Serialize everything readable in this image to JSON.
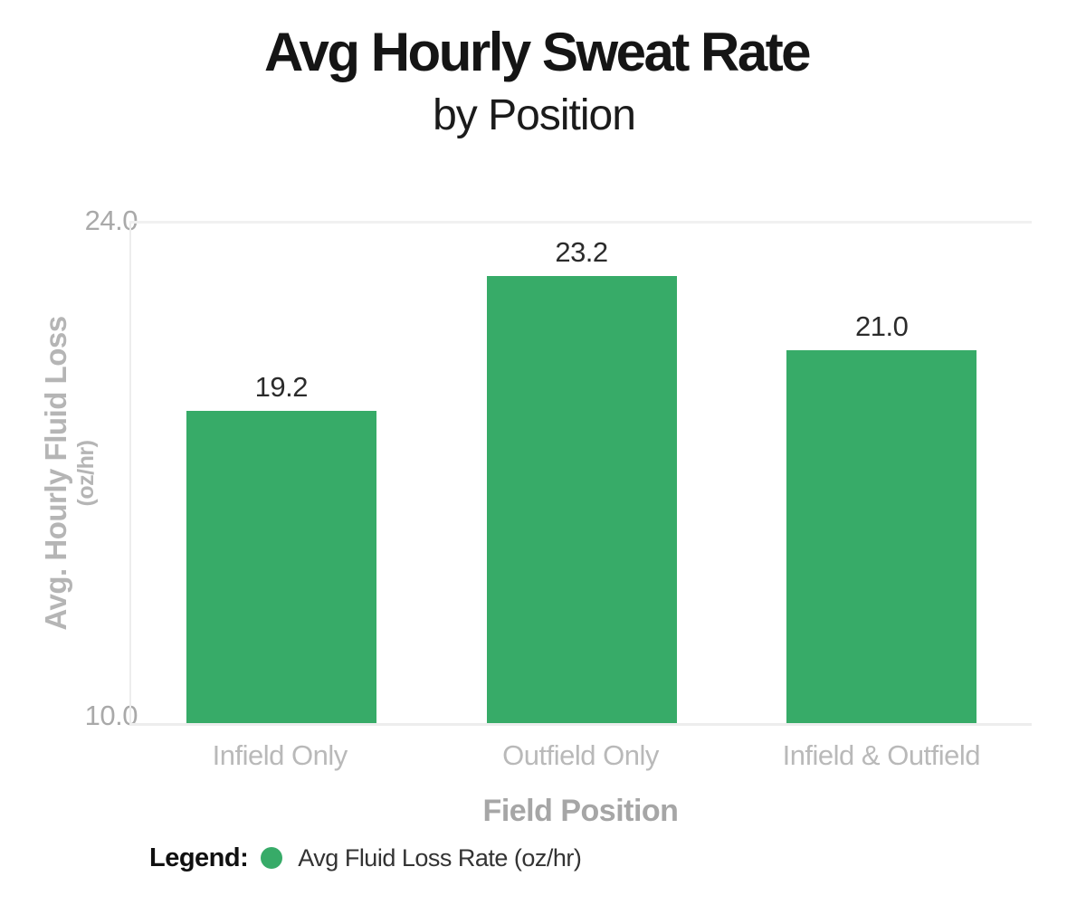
{
  "header": {
    "title": "Avg Hourly Sweat Rate",
    "subtitle": "by Position"
  },
  "chart_data": {
    "type": "bar",
    "title": "Avg Hourly Sweat Rate",
    "subtitle": "by Position",
    "categories": [
      "Infield Only",
      "Outfield Only",
      "Infield & Outfield"
    ],
    "series": [
      {
        "name": "Avg Fluid Loss Rate (oz/hr)",
        "values": [
          19.2,
          23.2,
          21.0
        ]
      }
    ],
    "value_labels": [
      "19.2",
      "23.2",
      "21.0"
    ],
    "xlabel": "Field Position",
    "ylabel": "Avg. Hourly Fluid Loss",
    "ylabel_unit": "(oz/hr)",
    "ylim": [
      10,
      24
    ],
    "yticks": {
      "max": "24.0",
      "min": "10.0"
    },
    "grid": "top gridline and baseline only",
    "legend_position": "bottom-left",
    "bar_color": "#37ab68"
  },
  "legend": {
    "label": "Legend:",
    "items": [
      {
        "swatch_color": "#37ab68",
        "text": "Avg Fluid Loss Rate (oz/hr)"
      }
    ]
  },
  "colors": {
    "bar_green": "#37ab68",
    "title_text": "#151515",
    "value_text": "#2b2b2b",
    "axis_tick_text": "#a9a9a9",
    "axis_title_text": "#b5b5b5",
    "category_text": "#b9b9b9",
    "x_axis_title_text": "#a6a6a6",
    "grid_line": "#f1f1f1"
  }
}
